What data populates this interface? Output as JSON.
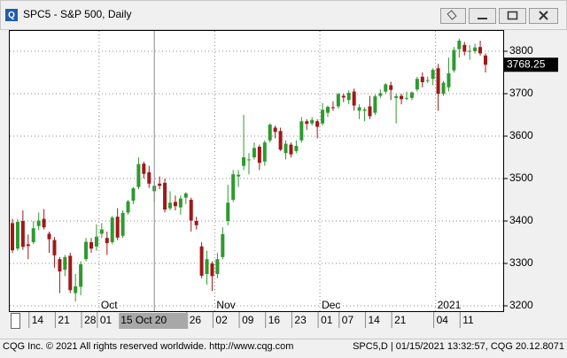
{
  "window": {
    "title": "SPC5 - S&P 500, Daily",
    "footer_left": "CQG Inc. © 2021 All rights reserved worldwide. http://www.cqg.com",
    "footer_right": "SPC5,D | 01/15/2021 13:32:57, CQG 20.12.8071",
    "icon": "Q"
  },
  "chart_data": {
    "type": "candlestick",
    "categories": [
      null,
      null,
      null,
      null,
      "14",
      null,
      null,
      null,
      null,
      "21",
      null,
      null,
      null,
      null,
      "28",
      null,
      null,
      "01",
      null,
      null,
      null,
      null,
      null,
      null,
      null,
      null,
      null,
      null,
      null,
      null,
      null,
      null,
      null,
      null,
      "26",
      null,
      null,
      null,
      null,
      "02",
      null,
      null,
      null,
      null,
      "09",
      null,
      null,
      null,
      null,
      "16",
      null,
      null,
      null,
      null,
      "23",
      null,
      null,
      null,
      null,
      "01",
      null,
      null,
      null,
      "07",
      null,
      null,
      null,
      null,
      "14",
      null,
      null,
      null,
      null,
      "21",
      null,
      null,
      null,
      null,
      null,
      null,
      null,
      "04",
      null,
      null,
      null,
      null,
      "11",
      null,
      null,
      null,
      null
    ],
    "months": [
      null,
      null,
      null,
      null,
      null,
      null,
      null,
      null,
      null,
      null,
      null,
      null,
      null,
      null,
      null,
      null,
      null,
      "Oct",
      null,
      null,
      null,
      null,
      null,
      null,
      null,
      null,
      null,
      null,
      null,
      null,
      null,
      null,
      null,
      null,
      null,
      null,
      null,
      null,
      null,
      "Nov",
      null,
      null,
      null,
      null,
      null,
      null,
      null,
      null,
      null,
      null,
      null,
      null,
      null,
      null,
      null,
      null,
      null,
      null,
      null,
      "Dec",
      null,
      null,
      null,
      null,
      null,
      null,
      null,
      null,
      null,
      null,
      null,
      null,
      null,
      null,
      null,
      null,
      null,
      null,
      null,
      null,
      null,
      "2021",
      null,
      null,
      null,
      null,
      null,
      null,
      null,
      null,
      null
    ],
    "open": [
      3395,
      3335,
      3400,
      3345,
      3350,
      3388,
      3405,
      3370,
      3355,
      3310,
      3285,
      3318,
      3230,
      3245,
      3310,
      3350,
      3340,
      3370,
      3360,
      3350,
      3410,
      3365,
      3420,
      3448,
      3480,
      3535,
      3515,
      3470,
      3488,
      3490,
      3430,
      3445,
      3432,
      3455,
      3450,
      3400,
      3340,
      3275,
      3300,
      3275,
      3315,
      3400,
      3450,
      3505,
      3530,
      3545,
      3550,
      3575,
      3540,
      3590,
      3620,
      3612,
      3560,
      3580,
      3565,
      3590,
      3635,
      3630,
      3635,
      3630,
      3655,
      3668,
      3670,
      3695,
      3685,
      3705,
      3660,
      3660,
      3670,
      3655,
      3695,
      3705,
      3720,
      3690,
      3695,
      3688,
      3690,
      3710,
      3740,
      3730,
      3735,
      3760,
      3700,
      3715,
      3755,
      3805,
      3815,
      3800,
      3800,
      3810,
      3790
    ],
    "high": [
      3405,
      3405,
      3425,
      3368,
      3400,
      3420,
      3428,
      3375,
      3362,
      3315,
      3320,
      3325,
      3275,
      3305,
      3360,
      3360,
      3392,
      3395,
      3375,
      3412,
      3430,
      3425,
      3450,
      3480,
      3550,
      3540,
      3530,
      3495,
      3505,
      3500,
      3470,
      3460,
      3460,
      3468,
      3455,
      3410,
      3350,
      3330,
      3305,
      3325,
      3385,
      3485,
      3520,
      3520,
      3650,
      3560,
      3585,
      3580,
      3590,
      3630,
      3625,
      3620,
      3590,
      3585,
      3590,
      3645,
      3640,
      3645,
      3640,
      3678,
      3672,
      3682,
      3702,
      3700,
      3708,
      3712,
      3675,
      3668,
      3695,
      3698,
      3710,
      3725,
      3728,
      3700,
      3700,
      3705,
      3705,
      3740,
      3750,
      3740,
      3760,
      3770,
      3730,
      3785,
      3810,
      3830,
      3822,
      3815,
      3818,
      3825,
      3795
    ],
    "low": [
      3325,
      3330,
      3332,
      3310,
      3345,
      3378,
      3380,
      3325,
      3290,
      3230,
      3270,
      3230,
      3210,
      3225,
      3305,
      3325,
      3330,
      3360,
      3320,
      3345,
      3355,
      3360,
      3415,
      3440,
      3475,
      3500,
      3478,
      3445,
      3475,
      3420,
      3425,
      3425,
      3415,
      3440,
      3375,
      3380,
      3265,
      3250,
      3235,
      3265,
      3310,
      3390,
      3445,
      3480,
      3520,
      3510,
      3545,
      3520,
      3530,
      3585,
      3595,
      3565,
      3545,
      3550,
      3560,
      3585,
      3615,
      3625,
      3595,
      3625,
      3645,
      3660,
      3665,
      3680,
      3675,
      3660,
      3640,
      3635,
      3640,
      3650,
      3690,
      3700,
      3685,
      3630,
      3675,
      3685,
      3685,
      3705,
      3715,
      3725,
      3720,
      3660,
      3695,
      3705,
      3750,
      3785,
      3790,
      3780,
      3795,
      3790,
      3750
    ],
    "close": [
      3331,
      3398,
      3339,
      3341,
      3383,
      3401,
      3385,
      3357,
      3319,
      3281,
      3315,
      3237,
      3246,
      3298,
      3351,
      3335,
      3363,
      3380,
      3348,
      3408,
      3361,
      3419,
      3446,
      3477,
      3534,
      3511,
      3488,
      3483,
      3483,
      3427,
      3443,
      3435,
      3453,
      3465,
      3401,
      3390,
      3271,
      3310,
      3270,
      3310,
      3369,
      3443,
      3510,
      3509,
      3550,
      3545,
      3572,
      3537,
      3585,
      3627,
      3610,
      3568,
      3582,
      3557,
      3577,
      3635,
      3629,
      3638,
      3622,
      3662,
      3669,
      3666,
      3699,
      3691,
      3702,
      3672,
      3668,
      3663,
      3647,
      3694,
      3701,
      3722,
      3709,
      3694,
      3687,
      3690,
      3703,
      3735,
      3727,
      3732,
      3756,
      3700,
      3726,
      3748,
      3803,
      3825,
      3799,
      3801,
      3809,
      3795,
      3768.25
    ],
    "last_value_label": "3768.25",
    "cursor_label": "15 Oct 20",
    "up_color": "#2e9a2e",
    "down_color": "#a01818",
    "ylim": [
      3187.5,
      3850
    ],
    "yticks": [
      3200,
      3300,
      3400,
      3500,
      3600,
      3700,
      3800
    ],
    "grid": true
  }
}
